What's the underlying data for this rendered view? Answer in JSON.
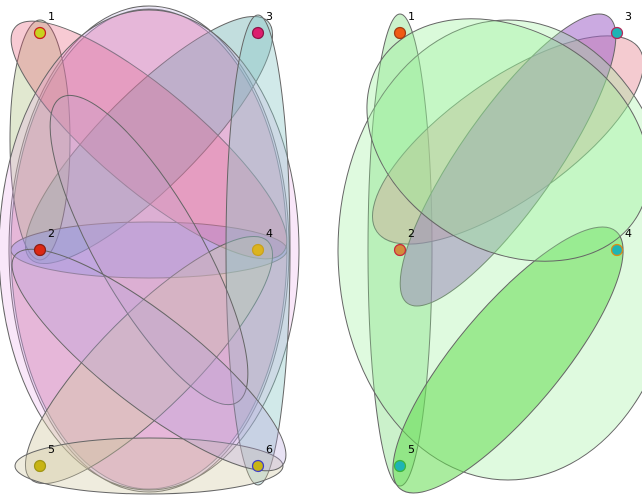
{
  "left_hypergraph": {
    "nodes": [
      {
        "label": "1",
        "color": "#c8d21e",
        "stroke": "#c81e1e"
      },
      {
        "label": "2",
        "color": "#dc2814",
        "stroke": "#8c1e14"
      },
      {
        "label": "3",
        "color": "#dc1e6e",
        "stroke": "#8c1446"
      },
      {
        "label": "4",
        "color": "#dcb41e",
        "stroke": "#c8a01e"
      },
      {
        "label": "5",
        "color": "#c8b414",
        "stroke": "#a09614"
      },
      {
        "label": "6",
        "color": "#c8b414",
        "stroke": "#3c3cc8"
      }
    ],
    "edge_colors": [
      "#e6506e",
      "#b4a0dc",
      "#50a0a0",
      "#aabe78",
      "#6e8ce6",
      "#e6a0e6",
      "#d2c8a0",
      "#8cc8c8",
      "#c8a0c8"
    ]
  },
  "right_hypergraph": {
    "nodes": [
      {
        "label": "1",
        "color": "#f05a14",
        "stroke": "#a03c14"
      },
      {
        "label": "2",
        "color": "#d28c3c",
        "stroke": "#c8283c"
      },
      {
        "label": "3",
        "color": "#1eb4b4",
        "stroke": "#b4285a"
      },
      {
        "label": "4",
        "color": "#1eb4b4",
        "stroke": "#dc8c14"
      },
      {
        "label": "5",
        "color": "#1eb4b4",
        "stroke": "#3cb43c"
      }
    ],
    "edge_colors": [
      "#a0e6a0",
      "#e68c96",
      "#a064c8",
      "#64dc50",
      "#96f096"
    ]
  }
}
